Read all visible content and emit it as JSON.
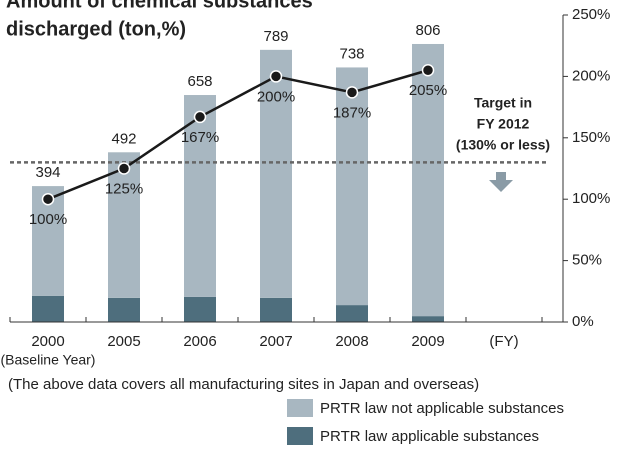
{
  "chart_data": {
    "type": "bar",
    "title": [
      "Amount of chemical substances",
      "discharged (ton,%)"
    ],
    "categories": [
      "2000",
      "2005",
      "2006",
      "2007",
      "2008",
      "2009"
    ],
    "category_note": "(Baseline Year)",
    "x_unit": "(FY)",
    "ylim": [
      0,
      890
    ],
    "y2lim": [
      0,
      250
    ],
    "y2ticks": [
      {
        "value": 0,
        "label": "0%"
      },
      {
        "value": 50,
        "label": "50%"
      },
      {
        "value": 100,
        "label": "100%"
      },
      {
        "value": 150,
        "label": "150%"
      },
      {
        "value": 200,
        "label": "200%"
      },
      {
        "value": 250,
        "label": "250%"
      }
    ],
    "series": [
      {
        "name": "PRTR law applicable substances",
        "color": "#4e6e7d",
        "values": [
          76,
          70,
          73,
          70,
          49,
          17
        ]
      },
      {
        "name": "PRTR law not applicable substances",
        "color": "#a8b7c1",
        "values": [
          318,
          422,
          585,
          719,
          689,
          789
        ]
      },
      {
        "type": "line",
        "axis": "y2",
        "color": "#1a1a1a",
        "values": [
          100,
          125,
          167,
          200,
          187,
          205
        ],
        "value_labels": [
          "100%",
          "125%",
          "167%",
          "200%",
          "187%",
          "205%"
        ]
      }
    ],
    "totals": [
      "394",
      "492",
      "658",
      "789",
      "738",
      "806"
    ],
    "target": {
      "value": 130,
      "label": [
        "Target in",
        "FY 2012",
        "(130% or less)"
      ],
      "color": "#4a8aa2"
    },
    "note": "(The above data covers all manufacturing sites in Japan and overseas)"
  }
}
